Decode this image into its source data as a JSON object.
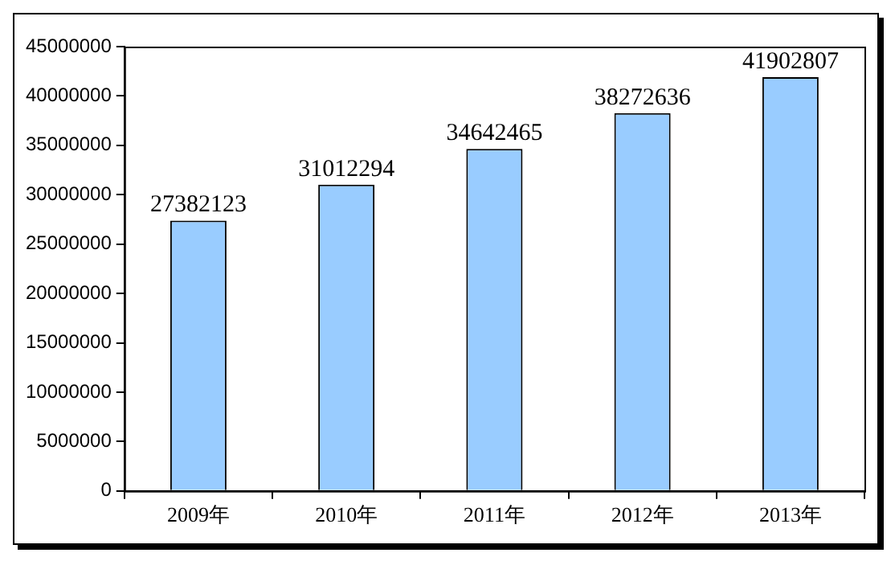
{
  "chart_data": {
    "type": "bar",
    "categories": [
      "2009年",
      "2010年",
      "2011年",
      "2012年",
      "2013年"
    ],
    "values": [
      27382123,
      31012294,
      34642465,
      38272636,
      41902807
    ],
    "color": "#99ccff",
    "ylim": [
      0,
      45000000
    ],
    "yticks": [
      0,
      5000000,
      10000000,
      15000000,
      20000000,
      25000000,
      30000000,
      35000000,
      40000000,
      45000000
    ],
    "grid": false,
    "legend": false,
    "data_labels": true
  }
}
